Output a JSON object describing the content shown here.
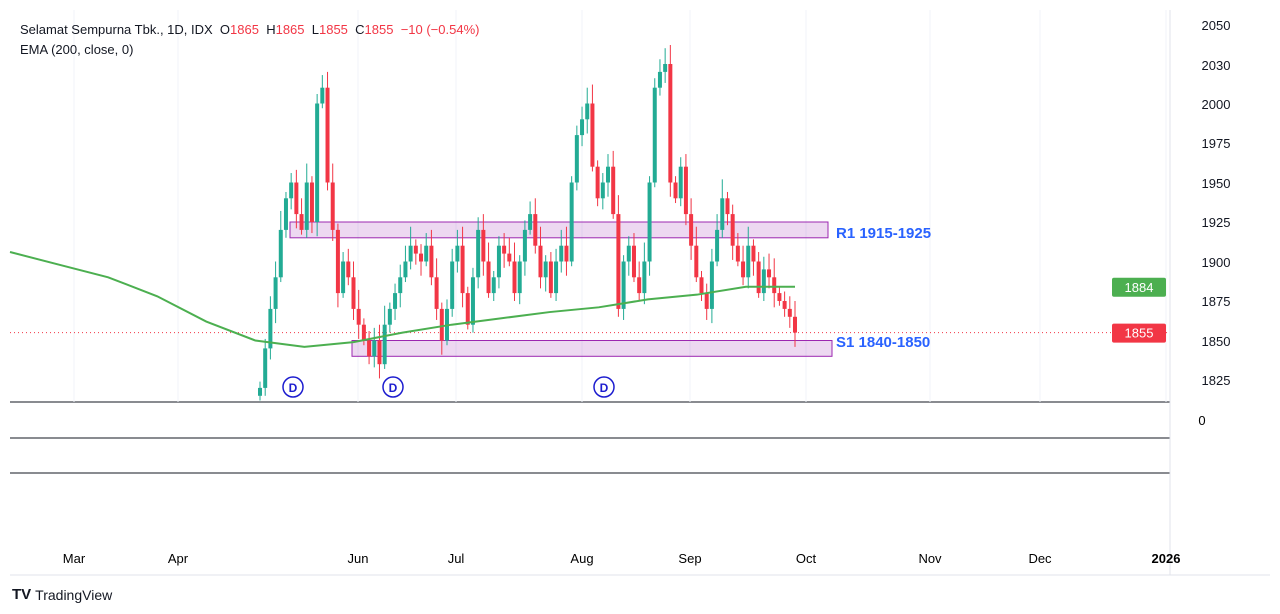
{
  "legend": {
    "symbol": "Selamat Sempurna Tbk., 1D, IDX",
    "o_label": "O",
    "o": "1865",
    "h_label": "H",
    "h": "1865",
    "l_label": "L",
    "l": "1855",
    "c_label": "C",
    "c": "1855",
    "change": "−10 (−0.54%)",
    "indicator": "EMA (200, close, 0)"
  },
  "brand": "TradingView",
  "colors": {
    "up": "#22ab94",
    "down": "#f23645",
    "ema": "#4caf50",
    "zone": "#9c27b0",
    "zone_label": "#2962ff"
  },
  "chart_data": {
    "type": "candlestick",
    "title": "Selamat Sempurna Tbk., 1D, IDX",
    "ylim": [
      1810,
      2060
    ],
    "y_ticks": [
      1825,
      1850,
      1875,
      1900,
      1925,
      1950,
      1975,
      2000,
      2030,
      2050
    ],
    "x_ticks": [
      "Mar",
      "Apr",
      "Jun",
      "Jul",
      "Aug",
      "Sep",
      "Oct",
      "Nov",
      "Dec",
      "2026"
    ],
    "closes": [
      1820,
      1845,
      1870,
      1890,
      1920,
      1940,
      1950,
      1930,
      1920,
      1950,
      1925,
      2000,
      2010,
      1950,
      1920,
      1880,
      1900,
      1890,
      1870,
      1860,
      1850,
      1840,
      1850,
      1835,
      1860,
      1870,
      1880,
      1890,
      1900,
      1910,
      1905,
      1900,
      1910,
      1890,
      1870,
      1850,
      1870,
      1900,
      1910,
      1880,
      1860,
      1890,
      1920,
      1900,
      1880,
      1890,
      1910,
      1905,
      1900,
      1880,
      1900,
      1920,
      1930,
      1910,
      1890,
      1900,
      1880,
      1900,
      1910,
      1900,
      1950,
      1980,
      1990,
      2000,
      1960,
      1940,
      1950,
      1960,
      1930,
      1870,
      1900,
      1910,
      1890,
      1880,
      1900,
      1950,
      2010,
      2020,
      2025,
      1950,
      1940,
      1960,
      1930,
      1910,
      1890,
      1880,
      1870,
      1900,
      1920,
      1940,
      1930,
      1910,
      1900,
      1890,
      1910,
      1900,
      1880,
      1895,
      1890,
      1880,
      1875,
      1870,
      1865,
      1855
    ],
    "ema": [
      1906,
      1898,
      1890,
      1878,
      1862,
      1850,
      1846,
      1849,
      1855,
      1860,
      1864,
      1868,
      1871,
      1876,
      1879,
      1884,
      1884
    ],
    "last_price": 1855,
    "ema_last": 1884,
    "zones": [
      {
        "label": "R1 1915-1925",
        "low": 1915,
        "high": 1925
      },
      {
        "label": "S1 1840-1850",
        "low": 1840,
        "high": 1850
      }
    ],
    "dividend_marks": [
      "D",
      "D",
      "D"
    ],
    "lower_pane_tick": "0"
  }
}
